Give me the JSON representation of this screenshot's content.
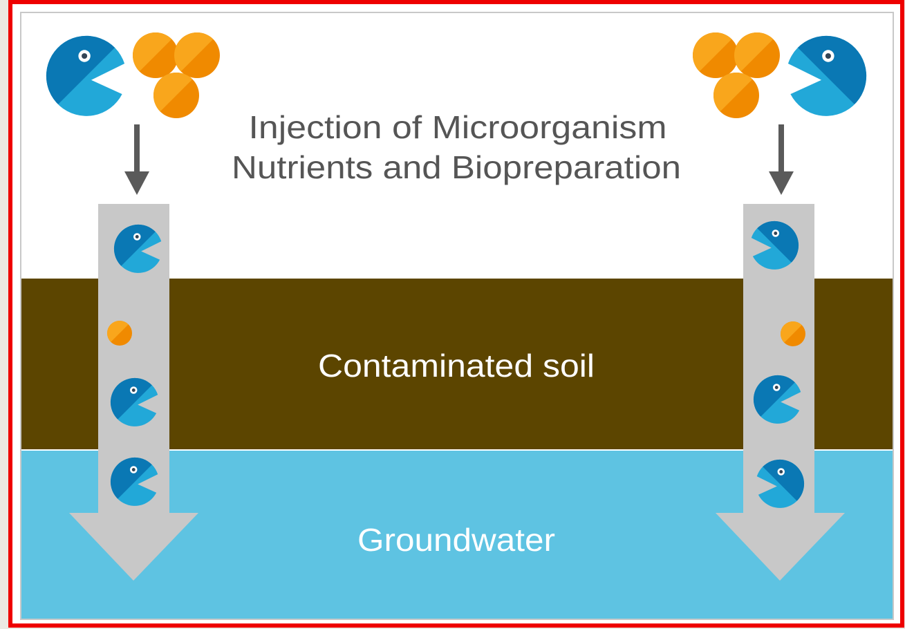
{
  "diagram": {
    "title_lines": [
      "Injection of Microorganism",
      "Nutrients and Biopreparation"
    ],
    "layers": {
      "soil": "Contaminated soil",
      "water": "Groundwater"
    }
  }
}
